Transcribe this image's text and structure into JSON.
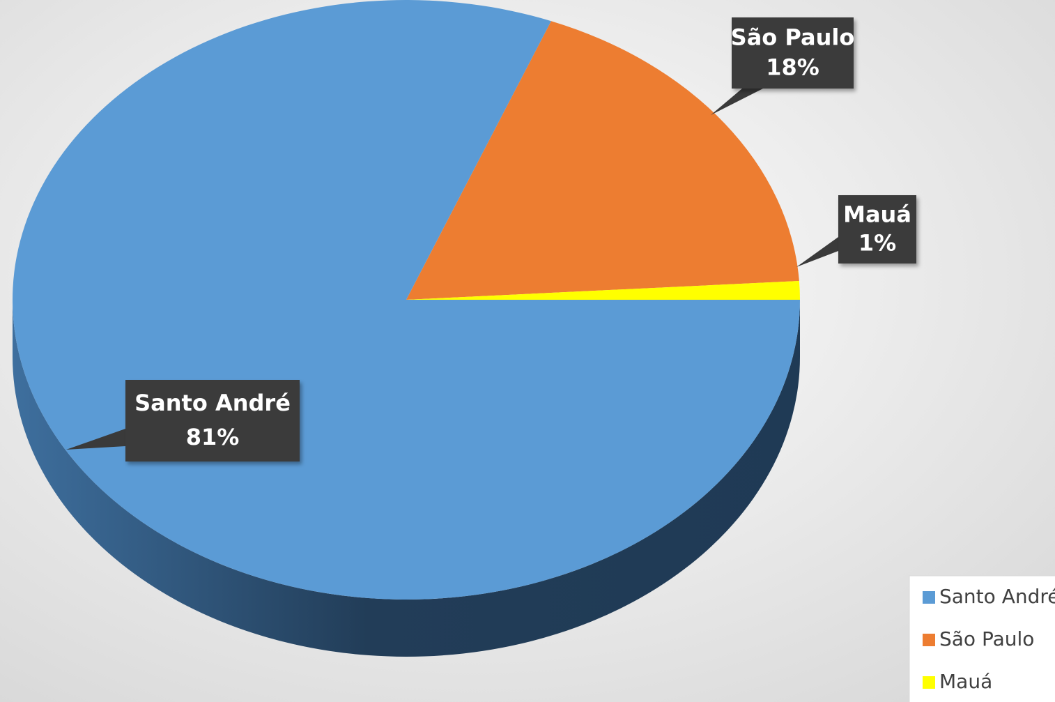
{
  "chart_data": {
    "type": "pie",
    "categories": [
      "Santo André",
      "São Paulo",
      "Mauá"
    ],
    "values": [
      81,
      18,
      1
    ],
    "value_labels": [
      "81%",
      "18%",
      "1%"
    ],
    "colors": [
      "#5b9bd5",
      "#ed7d31",
      "#ffff00"
    ],
    "legend": "right"
  }
}
